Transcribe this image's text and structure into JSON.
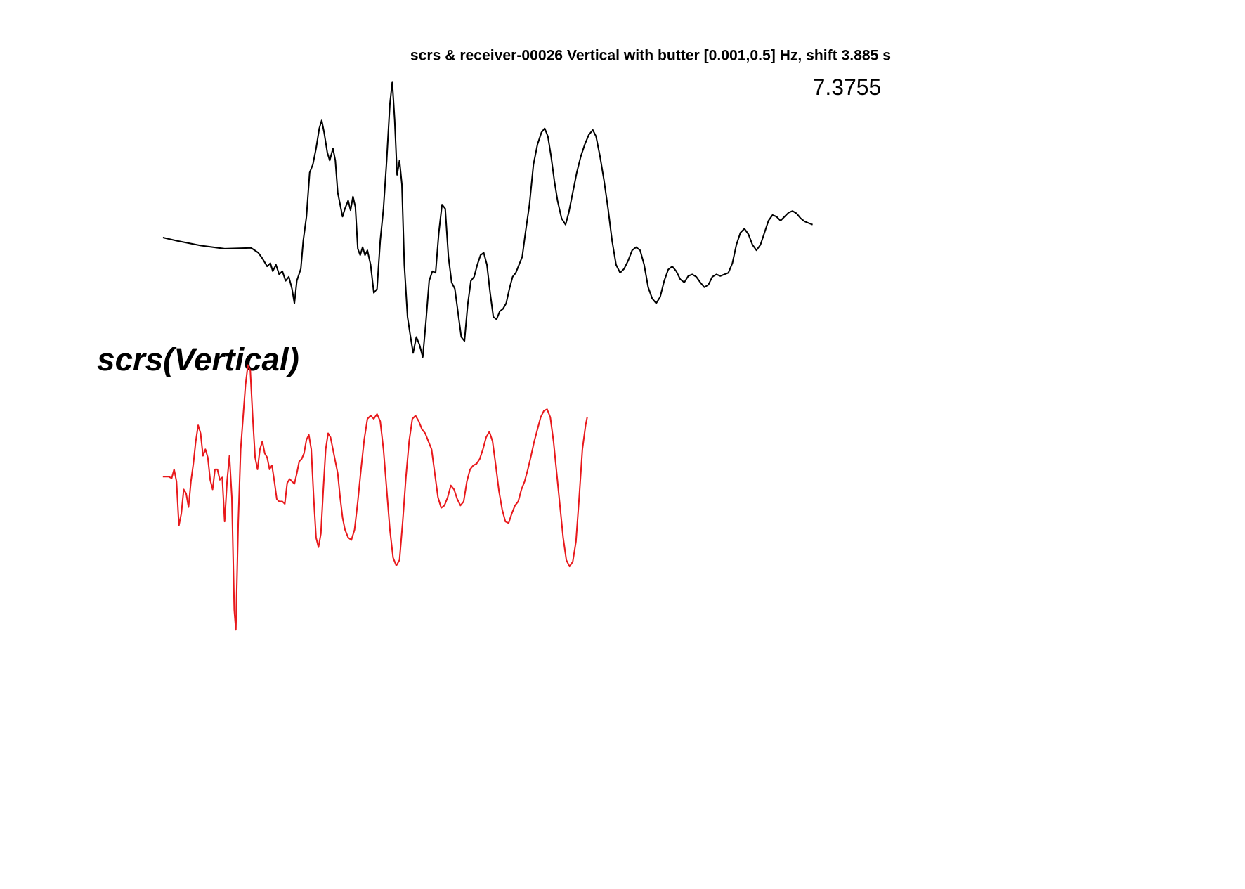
{
  "chart_data": [
    {
      "type": "line",
      "title": "scrs & receiver-00026 Vertical with butter [0.001,0.5] Hz, shift 3.885 s",
      "annotation": "7.3755",
      "xlim": [
        0,
        810
      ],
      "ylim": [
        -140,
        210
      ],
      "x": [
        0,
        17,
        47,
        77,
        110,
        119,
        124,
        130,
        134,
        137,
        141,
        145,
        149,
        153,
        157,
        161,
        164,
        167,
        172,
        175,
        179,
        183,
        187,
        191,
        195,
        198,
        201,
        205,
        208,
        212,
        215,
        218,
        221,
        224,
        227,
        231,
        234,
        237,
        240,
        243,
        246,
        249,
        252,
        255,
        259,
        263,
        267,
        271,
        275,
        279,
        283,
        286,
        289,
        292,
        295,
        298,
        301,
        305,
        308,
        312,
        316,
        320,
        324,
        328,
        332,
        336,
        340,
        344,
        348,
        352,
        356,
        360,
        364,
        368,
        372,
        376,
        380,
        384,
        388,
        392,
        396,
        400,
        404,
        408,
        412,
        416,
        420,
        424,
        428,
        432,
        436,
        440,
        444,
        448,
        452,
        457,
        462,
        467,
        472,
        476,
        480,
        484,
        488,
        492,
        497,
        502,
        506,
        511,
        516,
        521,
        526,
        531,
        536,
        540,
        545,
        550,
        555,
        560,
        565,
        570,
        575,
        580,
        585,
        590,
        595,
        600,
        605,
        610,
        615,
        620,
        625,
        630,
        635,
        640,
        645,
        650,
        655,
        660,
        665,
        670,
        675,
        680,
        685,
        690,
        695,
        700,
        705,
        710,
        715,
        720,
        725,
        730,
        735,
        740,
        745,
        750,
        755,
        760,
        765,
        770,
        775,
        780,
        785,
        790,
        795,
        800,
        805,
        810
      ],
      "series": [
        {
          "color": "#000000",
          "values": [
            14,
            10,
            4,
            0,
            1,
            -5,
            -12,
            -22,
            -18,
            -28,
            -20,
            -32,
            -28,
            -40,
            -35,
            -50,
            -68,
            -40,
            -25,
            10,
            40,
            95,
            105,
            125,
            150,
            160,
            145,
            120,
            110,
            125,
            110,
            70,
            55,
            40,
            50,
            60,
            48,
            65,
            52,
            0,
            -8,
            2,
            -8,
            -2,
            -20,
            -55,
            -50,
            10,
            50,
            110,
            180,
            208,
            160,
            92,
            110,
            80,
            -20,
            -85,
            -105,
            -130,
            -110,
            -120,
            -135,
            -90,
            -40,
            -28,
            -30,
            20,
            55,
            50,
            -10,
            -42,
            -50,
            -80,
            -110,
            -115,
            -70,
            -40,
            -35,
            -20,
            -8,
            -5,
            -20,
            -55,
            -85,
            -88,
            -78,
            -75,
            -68,
            -50,
            -35,
            -30,
            -20,
            -10,
            20,
            55,
            105,
            130,
            145,
            150,
            140,
            115,
            85,
            60,
            38,
            30,
            45,
            70,
            95,
            115,
            130,
            142,
            148,
            140,
            115,
            85,
            50,
            10,
            -20,
            -30,
            -25,
            -15,
            -2,
            2,
            -2,
            -20,
            -48,
            -62,
            -68,
            -60,
            -40,
            -26,
            -22,
            -28,
            -38,
            -42,
            -34,
            -32,
            -35,
            -42,
            -48,
            -45,
            -35,
            -32,
            -34,
            -32,
            -30,
            -18,
            5,
            20,
            25,
            18,
            5,
            -2,
            5,
            20,
            35,
            42,
            40,
            35,
            40,
            45,
            47,
            44,
            38,
            34,
            32,
            30
          ]
        }
      ]
    },
    {
      "type": "line",
      "label": "scrs(Vertical)",
      "xlim": [
        0,
        810
      ],
      "ylim": [
        -200,
        145
      ],
      "x": [
        0,
        7,
        11,
        14,
        17,
        20,
        23,
        26,
        29,
        32,
        35,
        38,
        41,
        44,
        47,
        50,
        53,
        56,
        59,
        62,
        65,
        68,
        71,
        74,
        77,
        80,
        83,
        86,
        89,
        91,
        94,
        97,
        100,
        103,
        106,
        109,
        112,
        115,
        118,
        121,
        124,
        127,
        130,
        133,
        136,
        139,
        142,
        145,
        149,
        152,
        155,
        158,
        161,
        164,
        167,
        170,
        173,
        176,
        179,
        182,
        185,
        188,
        191,
        194,
        197,
        200,
        203,
        206,
        209,
        212,
        215,
        218,
        221,
        224,
        227,
        231,
        235,
        239,
        243,
        247,
        251,
        255,
        259,
        263,
        267,
        271,
        275,
        279,
        283,
        287,
        291,
        295,
        299,
        303,
        307,
        311,
        315,
        319,
        323,
        327,
        331,
        335,
        339,
        343,
        347,
        351,
        355,
        359,
        363,
        367,
        371,
        375,
        379,
        383,
        387,
        391,
        395,
        399,
        403,
        407,
        411,
        415,
        419,
        423,
        427,
        431,
        435,
        439,
        443,
        447,
        451,
        455,
        459,
        463,
        467,
        471,
        475,
        479,
        483,
        487,
        491,
        495,
        499,
        503,
        507,
        511,
        515,
        519,
        523,
        527,
        529
      ],
      "series": [
        {
          "color": "#e8191c",
          "values": [
            0,
            0,
            -2,
            9,
            -6,
            -61,
            -46,
            -16,
            -21,
            -38,
            -6,
            16,
            44,
            64,
            54,
            26,
            34,
            24,
            -4,
            -16,
            9,
            9,
            -4,
            -1,
            -56,
            -6,
            26,
            -26,
            -166,
            -191,
            -56,
            34,
            74,
            114,
            139,
            132,
            74,
            24,
            9,
            34,
            44,
            29,
            24,
            9,
            14,
            -6,
            -28,
            -31,
            -31,
            -34,
            -8,
            -3,
            -6,
            -9,
            4,
            19,
            22,
            29,
            46,
            52,
            34,
            -26,
            -76,
            -88,
            -71,
            -16,
            34,
            54,
            49,
            34,
            19,
            4,
            -26,
            -51,
            -66,
            -76,
            -79,
            -66,
            -31,
            9,
            46,
            72,
            76,
            72,
            78,
            69,
            34,
            -16,
            -66,
            -101,
            -111,
            -104,
            -56,
            -1,
            44,
            72,
            76,
            69,
            59,
            54,
            44,
            34,
            4,
            -26,
            -39,
            -36,
            -26,
            -11,
            -16,
            -28,
            -36,
            -31,
            -6,
            9,
            14,
            16,
            22,
            34,
            49,
            56,
            44,
            14,
            -18,
            -41,
            -56,
            -58,
            -46,
            -36,
            -31,
            -16,
            -6,
            9,
            26,
            44,
            59,
            74,
            82,
            84,
            74,
            44,
            4,
            -36,
            -76,
            -104,
            -112,
            -106,
            -81,
            -26,
            34,
            64,
            74
          ]
        }
      ]
    }
  ]
}
